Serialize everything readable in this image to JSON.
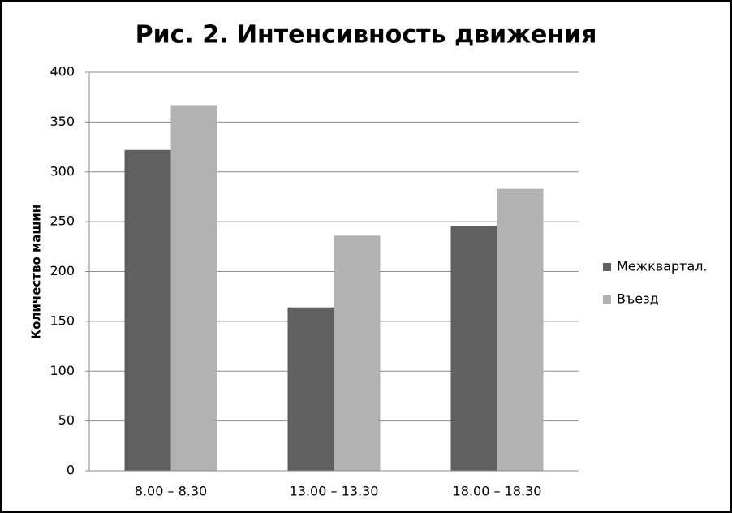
{
  "chart_data": {
    "type": "bar",
    "title": "Рис. 2. Интенсивность движения",
    "y_label": "Количество машин",
    "categories": [
      "8.00 – 8.30",
      "13.00 – 13.30",
      "18.00 – 18.30"
    ],
    "series": [
      {
        "name": "Межквартал.",
        "color": "#606060",
        "values": [
          322,
          164,
          246
        ]
      },
      {
        "name": "Въезд",
        "color": "#b2b2b2",
        "values": [
          367,
          236,
          283
        ]
      }
    ],
    "ylim": [
      0,
      400
    ],
    "yticks": [
      0,
      50,
      100,
      150,
      200,
      250,
      300,
      350,
      400
    ],
    "grid": true,
    "legend": "right"
  }
}
